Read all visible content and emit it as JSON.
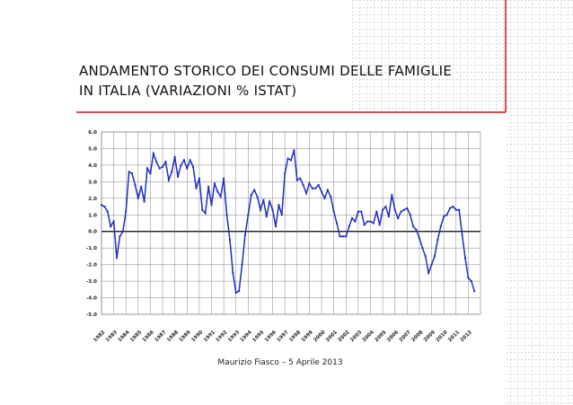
{
  "title_lines": [
    "ANDAMENTO STORICO DEI CONSUMI DELLE FAMIGLIE",
    "IN ITALIA (VARIAZIONI % ISTAT)"
  ],
  "footer": "Maurizio Fiasco – 5 Aprile 2013",
  "chart_data": {
    "type": "line",
    "color": "#1f2fbf",
    "grid": true,
    "xlim": [
      1982,
      2013
    ],
    "xticks": [
      1982,
      1983,
      1984,
      1985,
      1986,
      1987,
      1988,
      1989,
      1990,
      1991,
      1992,
      1993,
      1994,
      1995,
      1996,
      1997,
      1998,
      1999,
      2000,
      2001,
      2002,
      2003,
      2004,
      2005,
      2006,
      2007,
      2008,
      2009,
      2010,
      2011,
      2012
    ],
    "ylim": [
      -5,
      6
    ],
    "yticks": [
      {
        "value": 6,
        "label": "6.0"
      },
      {
        "value": 5,
        "label": "5.0"
      },
      {
        "value": 4,
        "label": "4.0"
      },
      {
        "value": 3,
        "label": "3.0"
      },
      {
        "value": 2,
        "label": "2.0"
      },
      {
        "value": 1,
        "label": "1.0"
      },
      {
        "value": 0,
        "label": "0.0"
      },
      {
        "value": -1,
        "label": "-1.0"
      },
      {
        "value": -2,
        "label": "-2.0"
      },
      {
        "value": -3,
        "label": "-3.0"
      },
      {
        "value": -4,
        "label": "-4.0"
      },
      {
        "value": -5,
        "label": "-5.0"
      }
    ],
    "x": [
      1982,
      1982.25,
      1982.5,
      1982.75,
      1983,
      1983.25,
      1983.5,
      1983.75,
      1984,
      1984.25,
      1984.5,
      1984.75,
      1985,
      1985.25,
      1985.5,
      1985.75,
      1986,
      1986.25,
      1986.5,
      1986.75,
      1987,
      1987.25,
      1987.5,
      1987.75,
      1988,
      1988.25,
      1988.5,
      1988.75,
      1989,
      1989.25,
      1989.5,
      1989.75,
      1990,
      1990.25,
      1990.5,
      1990.75,
      1991,
      1991.25,
      1991.5,
      1991.75,
      1992,
      1992.25,
      1992.5,
      1992.75,
      1993,
      1993.25,
      1993.5,
      1993.75,
      1994,
      1994.25,
      1994.5,
      1994.75,
      1995,
      1995.25,
      1995.5,
      1995.75,
      1996,
      1996.25,
      1996.5,
      1996.75,
      1997,
      1997.25,
      1997.5,
      1997.75,
      1998,
      1998.25,
      1998.5,
      1998.75,
      1999,
      1999.25,
      1999.5,
      1999.75,
      2000,
      2000.25,
      2000.5,
      2000.75,
      2001,
      2001.25,
      2001.5,
      2001.75,
      2002,
      2002.25,
      2002.5,
      2002.75,
      2003,
      2003.25,
      2003.5,
      2003.75,
      2004,
      2004.25,
      2004.5,
      2004.75,
      2005,
      2005.25,
      2005.5,
      2005.75,
      2006,
      2006.25,
      2006.5,
      2006.75,
      2007,
      2007.25,
      2007.5,
      2007.75,
      2008,
      2008.25,
      2008.5,
      2008.75,
      2009,
      2009.25,
      2009.5,
      2009.75,
      2010,
      2010.25,
      2010.5,
      2010.75,
      2011,
      2011.25,
      2011.5,
      2011.75,
      2012,
      2012.25,
      2012.5
    ],
    "values": [
      1.6,
      1.5,
      1.2,
      0.3,
      0.6,
      -1.6,
      -0.3,
      0,
      1.2,
      3.6,
      3.5,
      2.8,
      2.0,
      2.7,
      1.8,
      3.8,
      3.5,
      4.7,
      4.2,
      3.8,
      3.9,
      4.2,
      3.1,
      3.6,
      4.5,
      3.3,
      4.0,
      4.3,
      3.8,
      4.3,
      3.9,
      2.6,
      3.2,
      1.3,
      1.1,
      2.7,
      1.6,
      2.9,
      2.4,
      2.1,
      3.2,
      1.0,
      -0.5,
      -2.5,
      -3.7,
      -3.6,
      -2.0,
      -0.2,
      1.0,
      2.2,
      2.5,
      2.1,
      1.3,
      1.9,
      0.9,
      1.8,
      1.3,
      0.3,
      1.6,
      1.0,
      3.5,
      4.4,
      4.3,
      4.9,
      3.1,
      3.2,
      2.8,
      2.3,
      2.9,
      2.6,
      2.6,
      2.8,
      2.4,
      2.0,
      2.5,
      2.1,
      1.2,
      0.5,
      -0.3,
      -0.3,
      -0.3,
      0.3,
      0.8,
      0.6,
      1.2,
      1.2,
      0.4,
      0.6,
      0.6,
      0.5,
      1.2,
      0.4,
      1.3,
      1.5,
      0.9,
      2.2,
      1.3,
      0.8,
      1.2,
      1.3,
      1.4,
      1.0,
      0.3,
      0.1,
      -0.4,
      -1.0,
      -1.5,
      -2.5,
      -2.0,
      -1.5,
      -0.5,
      0.3,
      0.9,
      1.0,
      1.4,
      1.5,
      1.3,
      1.3,
      -0.2,
      -1.6,
      -2.8,
      -3.0,
      -3.6
    ]
  }
}
